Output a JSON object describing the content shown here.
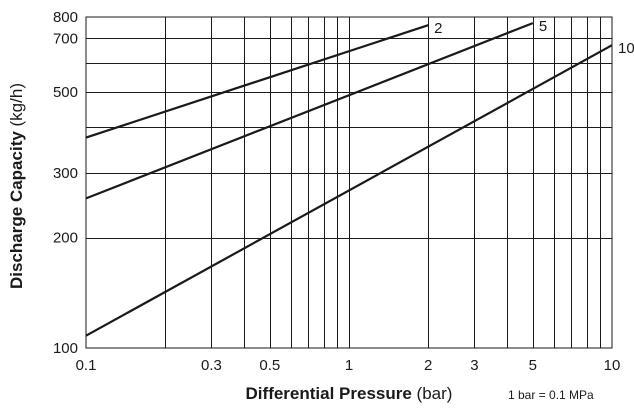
{
  "chart_data": {
    "type": "line",
    "x_scale": "log",
    "y_scale": "log",
    "xlim": [
      0.1,
      10
    ],
    "ylim": [
      100,
      800
    ],
    "x_tick_labels": [
      "0.1",
      "0.3",
      "0.5",
      "1",
      "2",
      "3",
      "5",
      "10"
    ],
    "x_ticks": [
      0.1,
      0.3,
      0.5,
      1,
      2,
      3,
      5,
      10
    ],
    "y_tick_labels": [
      "100",
      "200",
      "300",
      "500",
      "700",
      "800"
    ],
    "y_ticks": [
      100,
      200,
      300,
      500,
      700,
      800
    ],
    "x_grid": [
      0.2,
      0.3,
      0.4,
      0.5,
      0.6,
      0.7,
      0.8,
      0.9,
      1,
      2,
      3,
      4,
      5,
      6,
      7,
      8,
      9
    ],
    "y_grid": [
      200,
      300,
      400,
      500,
      600,
      700
    ],
    "grid": true,
    "xlabel": {
      "bold": "Differential Pressure",
      "normal": " (bar)"
    },
    "ylabel": {
      "bold": "Discharge Capacity",
      "normal": " (kg/h)"
    },
    "note": "1 bar = 0.1 MPa",
    "series": [
      {
        "name": "2",
        "x": [
          0.1,
          2
        ],
        "y": [
          375,
          760
        ]
      },
      {
        "name": "5",
        "x": [
          0.1,
          5
        ],
        "y": [
          256,
          770
        ]
      },
      {
        "name": "10",
        "x": [
          0.1,
          10
        ],
        "y": [
          108,
          670
        ]
      }
    ]
  }
}
